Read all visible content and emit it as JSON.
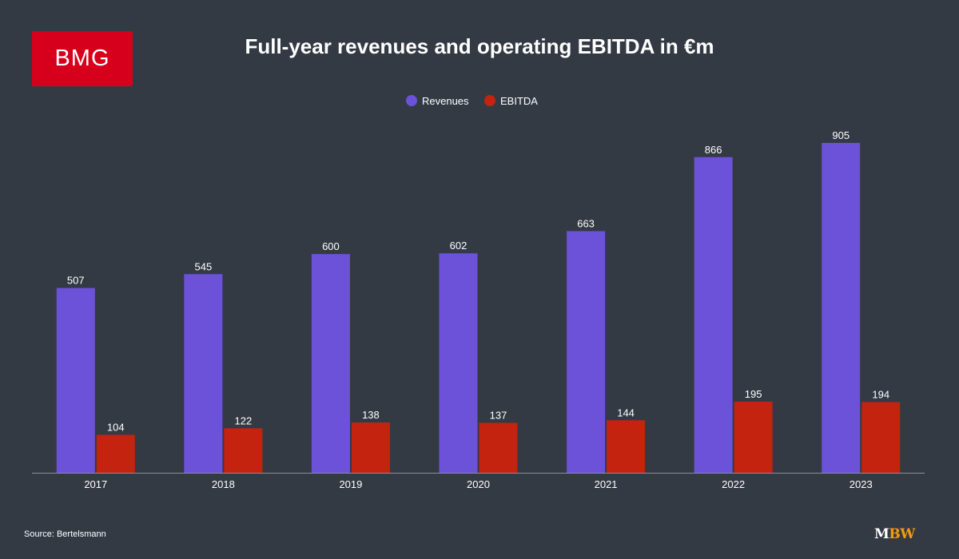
{
  "logo": {
    "text": "BMG",
    "color": "#d6001c"
  },
  "title": "Full-year revenues and operating EBITDA in €m",
  "source": "Source: Bertelsmann",
  "brand": {
    "m": "M",
    "bw": "BW"
  },
  "chart_data": {
    "type": "bar",
    "title": "Full-year revenues and operating EBITDA in €m",
    "categories": [
      "2017",
      "2018",
      "2019",
      "2020",
      "2021",
      "2022",
      "2023"
    ],
    "series": [
      {
        "name": "Revenues",
        "color": "#6b52d9",
        "values": [
          507,
          545,
          600,
          602,
          663,
          866,
          905
        ]
      },
      {
        "name": "EBITDA",
        "color": "#c4230f",
        "values": [
          104,
          122,
          138,
          137,
          144,
          195,
          194
        ]
      }
    ],
    "ylim": [
      0,
      950
    ],
    "grid": false,
    "legend": "top-center",
    "data_labels": true,
    "xlabel": "",
    "ylabel": ""
  }
}
